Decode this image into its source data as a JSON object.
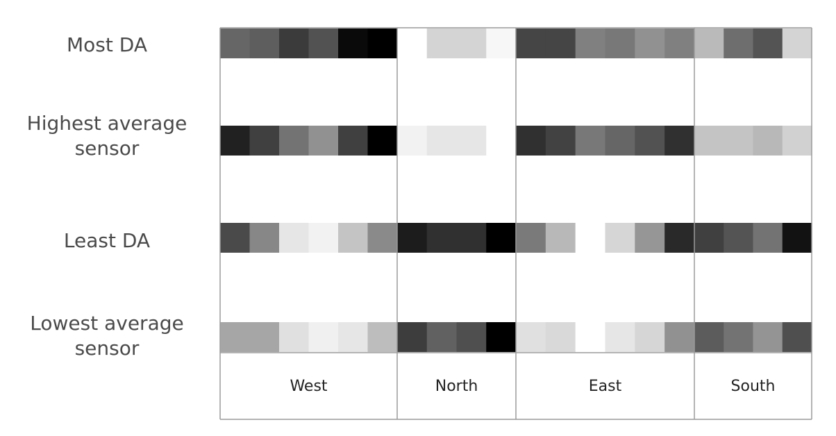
{
  "chart_data": {
    "type": "heatmap",
    "rows": [
      {
        "label": [
          "Most DA"
        ]
      },
      {
        "label": [
          "Highest average",
          "sensor"
        ]
      },
      {
        "label": [
          "Least DA"
        ]
      },
      {
        "label": [
          "Lowest average",
          "sensor"
        ]
      }
    ],
    "columns": [
      "West",
      "North",
      "East",
      "South"
    ],
    "cells_per_column": [
      6,
      4,
      6,
      4
    ],
    "values": [
      [
        [
          0.6,
          0.63,
          0.77,
          0.68,
          0.96,
          1.0
        ],
        [
          0.0,
          0.17,
          0.17,
          0.03
        ],
        [
          0.73,
          0.73,
          0.5,
          0.53,
          0.43,
          0.5
        ],
        [
          0.27,
          0.57,
          0.67,
          0.17
        ]
      ],
      [
        [
          0.87,
          0.75,
          0.55,
          0.43,
          0.75,
          1.0
        ],
        [
          0.05,
          0.1,
          0.1,
          0.0
        ],
        [
          0.81,
          0.74,
          0.53,
          0.6,
          0.68,
          0.81
        ],
        [
          0.23,
          0.23,
          0.28,
          0.18
        ]
      ],
      [
        [
          0.71,
          0.47,
          0.1,
          0.05,
          0.23,
          0.46
        ],
        [
          0.89,
          0.81,
          0.81,
          1.0
        ],
        [
          0.52,
          0.28,
          0.0,
          0.16,
          0.41,
          0.84
        ],
        [
          0.75,
          0.67,
          0.55,
          0.93
        ]
      ],
      [
        [
          0.35,
          0.35,
          0.12,
          0.06,
          0.1,
          0.26
        ],
        [
          0.76,
          0.62,
          0.69,
          1.0
        ],
        [
          0.12,
          0.15,
          0.0,
          0.1,
          0.16,
          0.43
        ],
        [
          0.64,
          0.55,
          0.42,
          0.69
        ]
      ]
    ],
    "color_scale": {
      "low": "#ffffff",
      "high": "#000000"
    },
    "grid_color": "#9a9a9a"
  }
}
